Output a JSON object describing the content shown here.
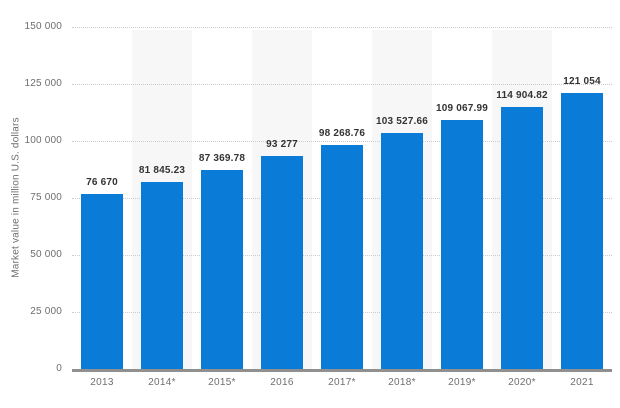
{
  "chart_data": {
    "type": "bar",
    "ylabel": "Market value in million U.S. dollars",
    "xlabel": "",
    "categories": [
      "2013",
      "2014*",
      "2015*",
      "2016",
      "2017*",
      "2018*",
      "2019*",
      "2020*",
      "2021"
    ],
    "values": [
      76670,
      81845.23,
      87369.78,
      93277,
      98268.76,
      103527.66,
      109067.99,
      114904.82,
      121054
    ],
    "value_labels": [
      "76 670",
      "81 845.23",
      "87 369.78",
      "93 277",
      "98 268.76",
      "103 527.66",
      "109 067.99",
      "114 904.82",
      "121 054"
    ],
    "yticks": [
      150000,
      125000,
      100000,
      75000,
      50000,
      25000,
      0
    ],
    "ytick_labels": [
      "150 000",
      "125 000",
      "100 000",
      "75 000",
      "50 000",
      "25 000",
      "0"
    ],
    "ylim": [
      0,
      150000
    ],
    "grid": "horizontal-dotted",
    "legend": "none",
    "band_columns": "alternating-even",
    "colors": {
      "bar": "#0a7bd6",
      "band": "#f7f7f7",
      "grid": "#cccccc",
      "tick_text": "#6e6e6e",
      "value_text": "#333333",
      "axis_line": "#909090",
      "background": "#ffffff"
    }
  }
}
